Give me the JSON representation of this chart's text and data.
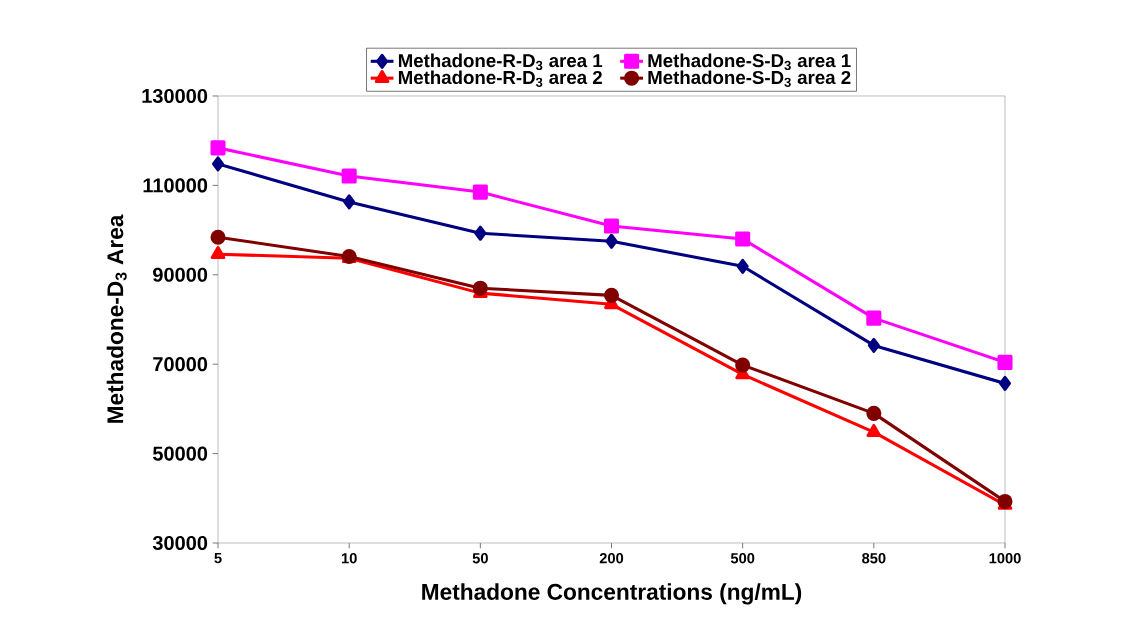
{
  "chart_data": {
    "type": "line",
    "xlabel": "Methadone Concentrations (ng/mL)",
    "ylabel": "Methadone-D$_{3}$ Area",
    "categories": [
      "5",
      "10",
      "50",
      "200",
      "500",
      "850",
      "1000"
    ],
    "ylim": [
      30000,
      130000
    ],
    "yticks": [
      30000,
      50000,
      70000,
      90000,
      110000,
      130000
    ],
    "legend": "top",
    "grid": false,
    "series": [
      {
        "name": "Methadone-R-D$_{3}$ area 1",
        "color": "#000080",
        "marker": "diamond",
        "values": [
          114800,
          106300,
          99300,
          97500,
          91900,
          74200,
          65700
        ]
      },
      {
        "name": "Methadone-S-D$_{3}$ area 1",
        "color": "#ff00ff",
        "marker": "square",
        "values": [
          118400,
          112100,
          108500,
          100900,
          98000,
          80300,
          70400
        ]
      },
      {
        "name": "Methadone-R-D$_{3}$ area 2",
        "color": "#ff0000",
        "marker": "triangle",
        "values": [
          94600,
          93700,
          85900,
          83400,
          67700,
          54800,
          38500
        ]
      },
      {
        "name": "Methadone-S-D$_{3}$ area 2",
        "color": "#800000",
        "marker": "circle",
        "values": [
          98400,
          94100,
          87000,
          85400,
          69800,
          59000,
          39300
        ]
      }
    ]
  }
}
